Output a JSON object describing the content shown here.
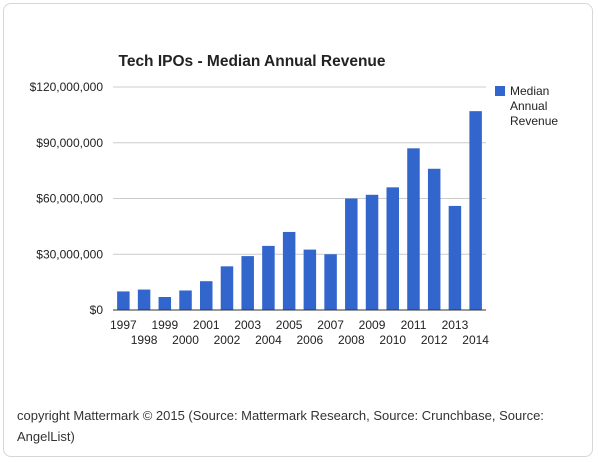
{
  "chart_data": {
    "type": "bar",
    "title": "Tech IPOs - Median Annual Revenue",
    "xlabel": "",
    "ylabel": "",
    "categories": [
      "1997",
      "1998",
      "1999",
      "2000",
      "2001",
      "2002",
      "2003",
      "2004",
      "2005",
      "2006",
      "2007",
      "2008",
      "2009",
      "2010",
      "2011",
      "2012",
      "2013",
      "2014"
    ],
    "series": [
      {
        "name": "Median Annual Revenue",
        "color": "#3366cc",
        "values": [
          10000000,
          11000000,
          7000000,
          10500000,
          15500000,
          23500000,
          29000000,
          34500000,
          42000000,
          32500000,
          30000000,
          60000000,
          62000000,
          66000000,
          87000000,
          76000000,
          56000000,
          107000000
        ]
      }
    ],
    "ylim": [
      0,
      120000000
    ],
    "yticks": [
      0,
      30000000,
      60000000,
      90000000,
      120000000
    ],
    "ytick_labels": [
      "$0",
      "$30,000,000",
      "$60,000,000",
      "$90,000,000",
      "$120,000,000"
    ],
    "legend": {
      "position": "right",
      "labels": [
        "Median",
        "Annual",
        "Revenue"
      ]
    },
    "grid": true
  },
  "footer": {
    "text": "copyright Mattermark © 2015 (Source: Mattermark Research, Source: Crunchbase, Source: AngelList)"
  }
}
